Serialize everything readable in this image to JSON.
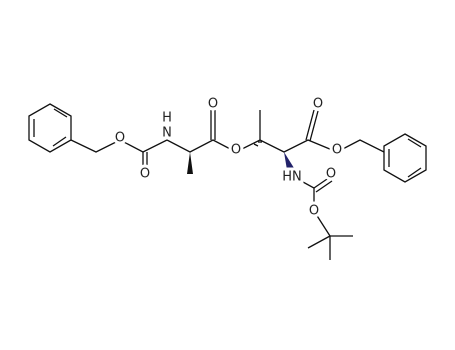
{
  "atoms": [
    {
      "label": "O"
    },
    {
      "label": "O"
    },
    {
      "label": "H"
    },
    {
      "label": "N"
    },
    {
      "label": "O"
    },
    {
      "label": "O"
    },
    {
      "label": "O"
    },
    {
      "label": "O"
    },
    {
      "label": "HN"
    },
    {
      "label": "O"
    },
    {
      "label": "O"
    }
  ]
}
